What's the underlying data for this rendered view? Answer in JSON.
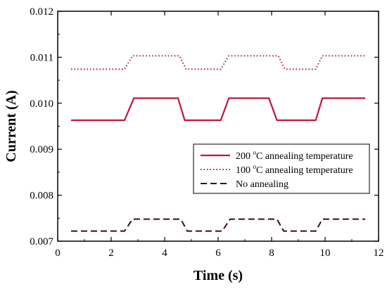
{
  "chart_data": {
    "type": "line",
    "xlabel": "Time (s)",
    "ylabel": "Current (A)",
    "xlim": [
      0,
      12
    ],
    "ylim": [
      0.007,
      0.012
    ],
    "xticks": [
      "0",
      "2",
      "4",
      "6",
      "8",
      "10",
      "12"
    ],
    "yticks": [
      "0.007",
      "0.008",
      "0.009",
      "0.010",
      "0.011",
      "0.012"
    ],
    "grid": false,
    "legend_position": "center-right",
    "series": [
      {
        "name_pre": "200 ",
        "name_sup": "o",
        "name_post": "C annealing temperature",
        "color": "#c0143c",
        "style": "solid",
        "x": [
          0.5,
          2.5,
          2.85,
          4.5,
          4.75,
          6.1,
          6.4,
          7.9,
          8.2,
          9.65,
          9.9,
          11.5
        ],
        "y": [
          0.00963,
          0.00963,
          0.01011,
          0.01011,
          0.00963,
          0.00963,
          0.01011,
          0.01011,
          0.00963,
          0.00963,
          0.01011,
          0.01011
        ]
      },
      {
        "name_pre": "100 ",
        "name_sup": "o",
        "name_post": "C annealing temperature",
        "color": "#a01838",
        "style": "dotted",
        "x": [
          0.5,
          2.5,
          2.8,
          4.55,
          4.8,
          6.1,
          6.4,
          8.25,
          8.5,
          9.65,
          9.9,
          11.5
        ],
        "y": [
          0.01074,
          0.01074,
          0.01103,
          0.01103,
          0.01074,
          0.01074,
          0.01103,
          0.01103,
          0.01074,
          0.01074,
          0.01103,
          0.01103
        ]
      },
      {
        "name_pre": "No annealing",
        "name_sup": "",
        "name_post": "",
        "color": "#3a0e14",
        "style": "dashed",
        "x": [
          0.5,
          2.5,
          2.8,
          4.6,
          4.85,
          6.15,
          6.45,
          8.2,
          8.45,
          9.65,
          9.9,
          11.5
        ],
        "y": [
          0.00722,
          0.00722,
          0.00748,
          0.00748,
          0.00722,
          0.00722,
          0.00748,
          0.00748,
          0.00722,
          0.00722,
          0.00748,
          0.00748
        ]
      }
    ]
  }
}
